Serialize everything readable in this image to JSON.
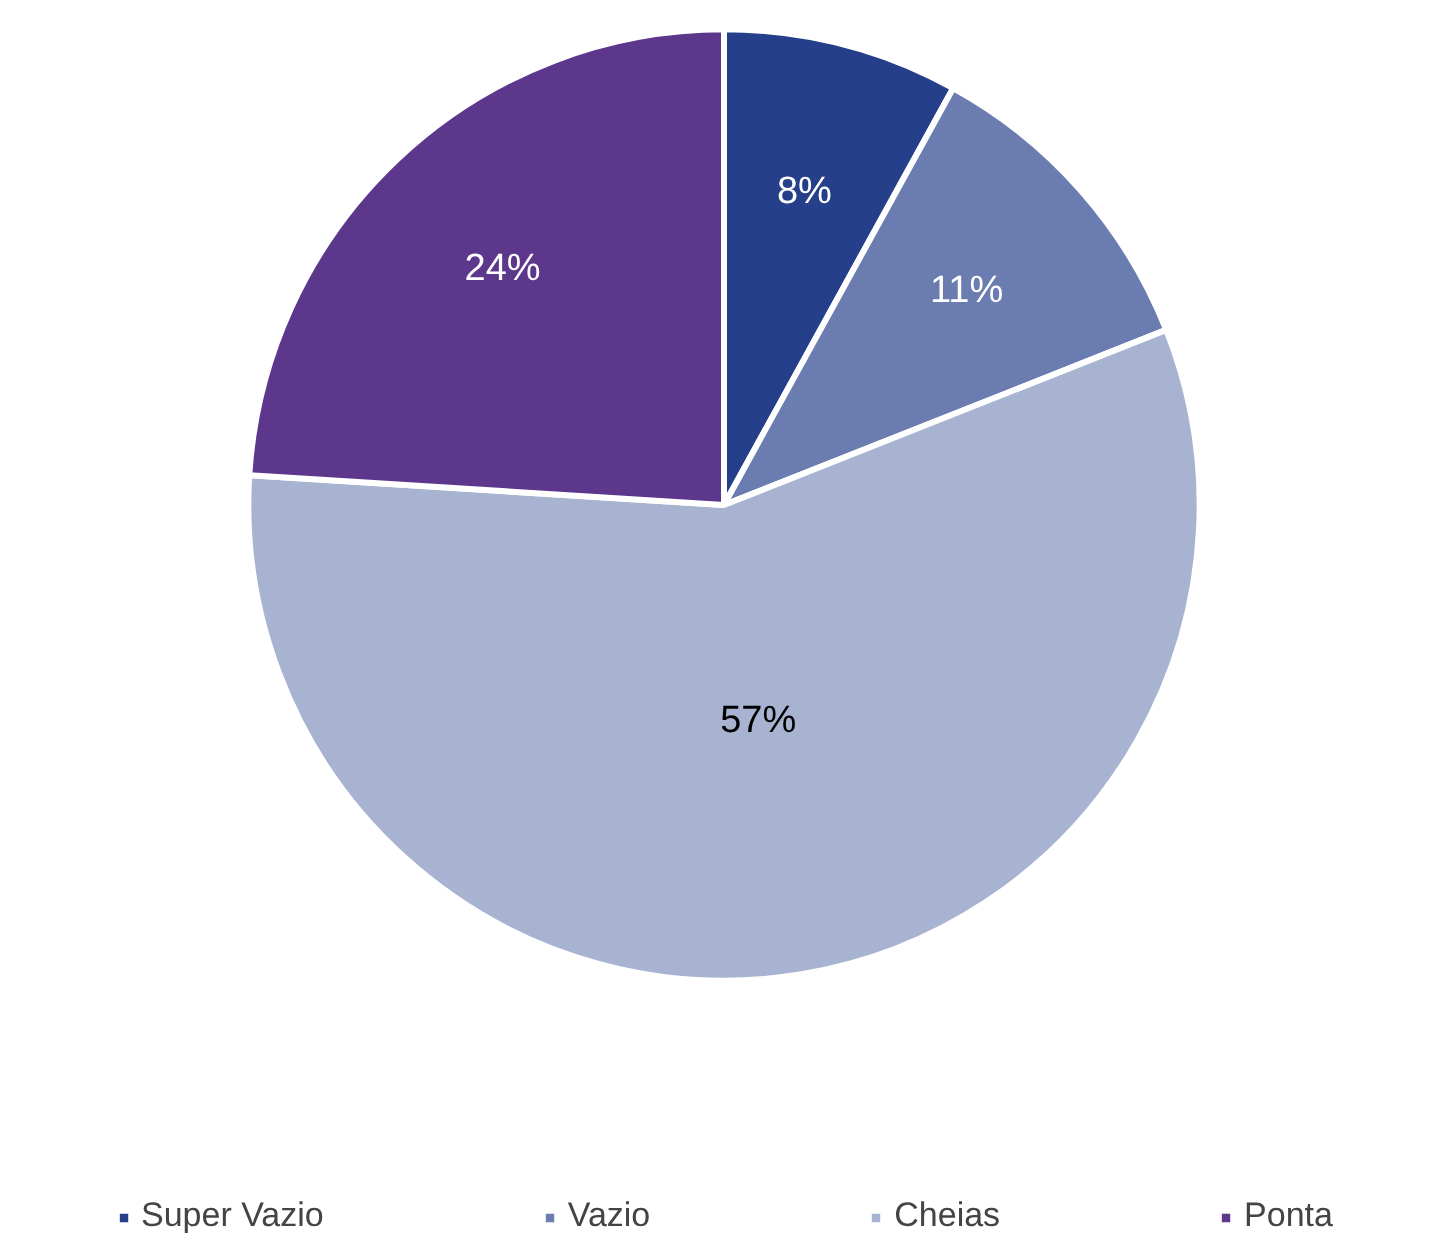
{
  "chart_data": {
    "type": "pie",
    "categories": [
      "Super Vazio",
      "Vazio",
      "Cheias",
      "Ponta"
    ],
    "values": [
      8,
      11,
      57,
      24
    ],
    "colors": [
      "#253f8b",
      "#6a7cb0",
      "#a7b3d1",
      "#5c378c"
    ],
    "value_labels": [
      "8%",
      "11%",
      "57%",
      "24%"
    ],
    "legend": "bottom"
  }
}
